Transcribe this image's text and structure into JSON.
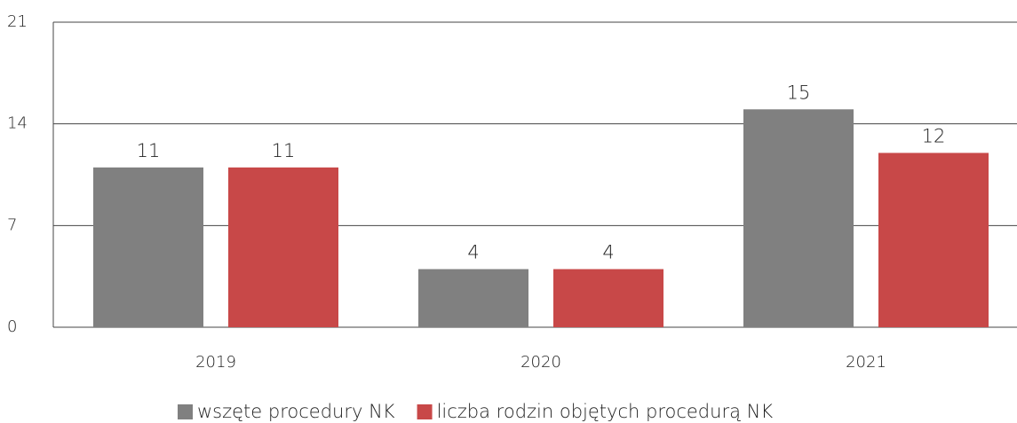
{
  "chart_data": {
    "type": "bar",
    "categories": [
      "2019",
      "2020",
      "2021"
    ],
    "series": [
      {
        "name": "wszęte procedury NK",
        "color": "#808080",
        "values": [
          11,
          4,
          15
        ]
      },
      {
        "name": "liczba rodzin objętych procedurą NK",
        "color": "#c84848",
        "values": [
          11,
          4,
          12
        ]
      }
    ],
    "ylim": [
      0,
      21
    ],
    "yticks": [
      0,
      7,
      14,
      21
    ],
    "grid": true,
    "legend": "bottom"
  }
}
